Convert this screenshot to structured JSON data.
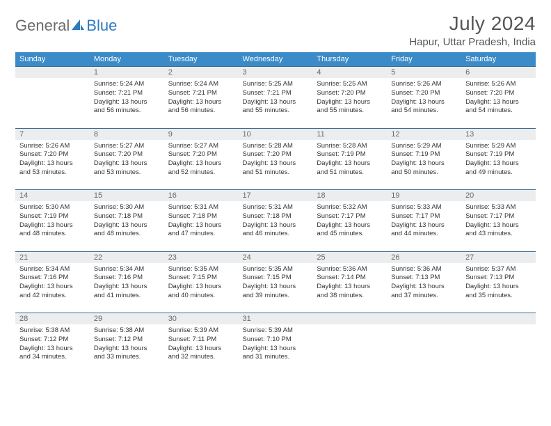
{
  "logo": {
    "part1": "General",
    "part2": "Blue"
  },
  "title": "July 2024",
  "location": "Hapur, Uttar Pradesh, India",
  "colors": {
    "header_bg": "#3b8bc8",
    "header_text": "#ffffff",
    "daynum_bg": "#ebedef",
    "daynum_text": "#6a6a6a",
    "rule": "#3b6a8f",
    "body_text": "#333333",
    "logo_gray": "#6a6a6a",
    "logo_blue": "#2d7bbf"
  },
  "weekdays": [
    "Sunday",
    "Monday",
    "Tuesday",
    "Wednesday",
    "Thursday",
    "Friday",
    "Saturday"
  ],
  "weeks": [
    {
      "nums": [
        "",
        "1",
        "2",
        "3",
        "4",
        "5",
        "6"
      ],
      "cells": [
        null,
        {
          "sunrise": "Sunrise: 5:24 AM",
          "sunset": "Sunset: 7:21 PM",
          "day1": "Daylight: 13 hours",
          "day2": "and 56 minutes."
        },
        {
          "sunrise": "Sunrise: 5:24 AM",
          "sunset": "Sunset: 7:21 PM",
          "day1": "Daylight: 13 hours",
          "day2": "and 56 minutes."
        },
        {
          "sunrise": "Sunrise: 5:25 AM",
          "sunset": "Sunset: 7:21 PM",
          "day1": "Daylight: 13 hours",
          "day2": "and 55 minutes."
        },
        {
          "sunrise": "Sunrise: 5:25 AM",
          "sunset": "Sunset: 7:20 PM",
          "day1": "Daylight: 13 hours",
          "day2": "and 55 minutes."
        },
        {
          "sunrise": "Sunrise: 5:26 AM",
          "sunset": "Sunset: 7:20 PM",
          "day1": "Daylight: 13 hours",
          "day2": "and 54 minutes."
        },
        {
          "sunrise": "Sunrise: 5:26 AM",
          "sunset": "Sunset: 7:20 PM",
          "day1": "Daylight: 13 hours",
          "day2": "and 54 minutes."
        }
      ]
    },
    {
      "nums": [
        "7",
        "8",
        "9",
        "10",
        "11",
        "12",
        "13"
      ],
      "cells": [
        {
          "sunrise": "Sunrise: 5:26 AM",
          "sunset": "Sunset: 7:20 PM",
          "day1": "Daylight: 13 hours",
          "day2": "and 53 minutes."
        },
        {
          "sunrise": "Sunrise: 5:27 AM",
          "sunset": "Sunset: 7:20 PM",
          "day1": "Daylight: 13 hours",
          "day2": "and 53 minutes."
        },
        {
          "sunrise": "Sunrise: 5:27 AM",
          "sunset": "Sunset: 7:20 PM",
          "day1": "Daylight: 13 hours",
          "day2": "and 52 minutes."
        },
        {
          "sunrise": "Sunrise: 5:28 AM",
          "sunset": "Sunset: 7:20 PM",
          "day1": "Daylight: 13 hours",
          "day2": "and 51 minutes."
        },
        {
          "sunrise": "Sunrise: 5:28 AM",
          "sunset": "Sunset: 7:19 PM",
          "day1": "Daylight: 13 hours",
          "day2": "and 51 minutes."
        },
        {
          "sunrise": "Sunrise: 5:29 AM",
          "sunset": "Sunset: 7:19 PM",
          "day1": "Daylight: 13 hours",
          "day2": "and 50 minutes."
        },
        {
          "sunrise": "Sunrise: 5:29 AM",
          "sunset": "Sunset: 7:19 PM",
          "day1": "Daylight: 13 hours",
          "day2": "and 49 minutes."
        }
      ]
    },
    {
      "nums": [
        "14",
        "15",
        "16",
        "17",
        "18",
        "19",
        "20"
      ],
      "cells": [
        {
          "sunrise": "Sunrise: 5:30 AM",
          "sunset": "Sunset: 7:19 PM",
          "day1": "Daylight: 13 hours",
          "day2": "and 48 minutes."
        },
        {
          "sunrise": "Sunrise: 5:30 AM",
          "sunset": "Sunset: 7:18 PM",
          "day1": "Daylight: 13 hours",
          "day2": "and 48 minutes."
        },
        {
          "sunrise": "Sunrise: 5:31 AM",
          "sunset": "Sunset: 7:18 PM",
          "day1": "Daylight: 13 hours",
          "day2": "and 47 minutes."
        },
        {
          "sunrise": "Sunrise: 5:31 AM",
          "sunset": "Sunset: 7:18 PM",
          "day1": "Daylight: 13 hours",
          "day2": "and 46 minutes."
        },
        {
          "sunrise": "Sunrise: 5:32 AM",
          "sunset": "Sunset: 7:17 PM",
          "day1": "Daylight: 13 hours",
          "day2": "and 45 minutes."
        },
        {
          "sunrise": "Sunrise: 5:33 AM",
          "sunset": "Sunset: 7:17 PM",
          "day1": "Daylight: 13 hours",
          "day2": "and 44 minutes."
        },
        {
          "sunrise": "Sunrise: 5:33 AM",
          "sunset": "Sunset: 7:17 PM",
          "day1": "Daylight: 13 hours",
          "day2": "and 43 minutes."
        }
      ]
    },
    {
      "nums": [
        "21",
        "22",
        "23",
        "24",
        "25",
        "26",
        "27"
      ],
      "cells": [
        {
          "sunrise": "Sunrise: 5:34 AM",
          "sunset": "Sunset: 7:16 PM",
          "day1": "Daylight: 13 hours",
          "day2": "and 42 minutes."
        },
        {
          "sunrise": "Sunrise: 5:34 AM",
          "sunset": "Sunset: 7:16 PM",
          "day1": "Daylight: 13 hours",
          "day2": "and 41 minutes."
        },
        {
          "sunrise": "Sunrise: 5:35 AM",
          "sunset": "Sunset: 7:15 PM",
          "day1": "Daylight: 13 hours",
          "day2": "and 40 minutes."
        },
        {
          "sunrise": "Sunrise: 5:35 AM",
          "sunset": "Sunset: 7:15 PM",
          "day1": "Daylight: 13 hours",
          "day2": "and 39 minutes."
        },
        {
          "sunrise": "Sunrise: 5:36 AM",
          "sunset": "Sunset: 7:14 PM",
          "day1": "Daylight: 13 hours",
          "day2": "and 38 minutes."
        },
        {
          "sunrise": "Sunrise: 5:36 AM",
          "sunset": "Sunset: 7:13 PM",
          "day1": "Daylight: 13 hours",
          "day2": "and 37 minutes."
        },
        {
          "sunrise": "Sunrise: 5:37 AM",
          "sunset": "Sunset: 7:13 PM",
          "day1": "Daylight: 13 hours",
          "day2": "and 35 minutes."
        }
      ]
    },
    {
      "nums": [
        "28",
        "29",
        "30",
        "31",
        "",
        "",
        ""
      ],
      "cells": [
        {
          "sunrise": "Sunrise: 5:38 AM",
          "sunset": "Sunset: 7:12 PM",
          "day1": "Daylight: 13 hours",
          "day2": "and 34 minutes."
        },
        {
          "sunrise": "Sunrise: 5:38 AM",
          "sunset": "Sunset: 7:12 PM",
          "day1": "Daylight: 13 hours",
          "day2": "and 33 minutes."
        },
        {
          "sunrise": "Sunrise: 5:39 AM",
          "sunset": "Sunset: 7:11 PM",
          "day1": "Daylight: 13 hours",
          "day2": "and 32 minutes."
        },
        {
          "sunrise": "Sunrise: 5:39 AM",
          "sunset": "Sunset: 7:10 PM",
          "day1": "Daylight: 13 hours",
          "day2": "and 31 minutes."
        },
        null,
        null,
        null
      ]
    }
  ]
}
